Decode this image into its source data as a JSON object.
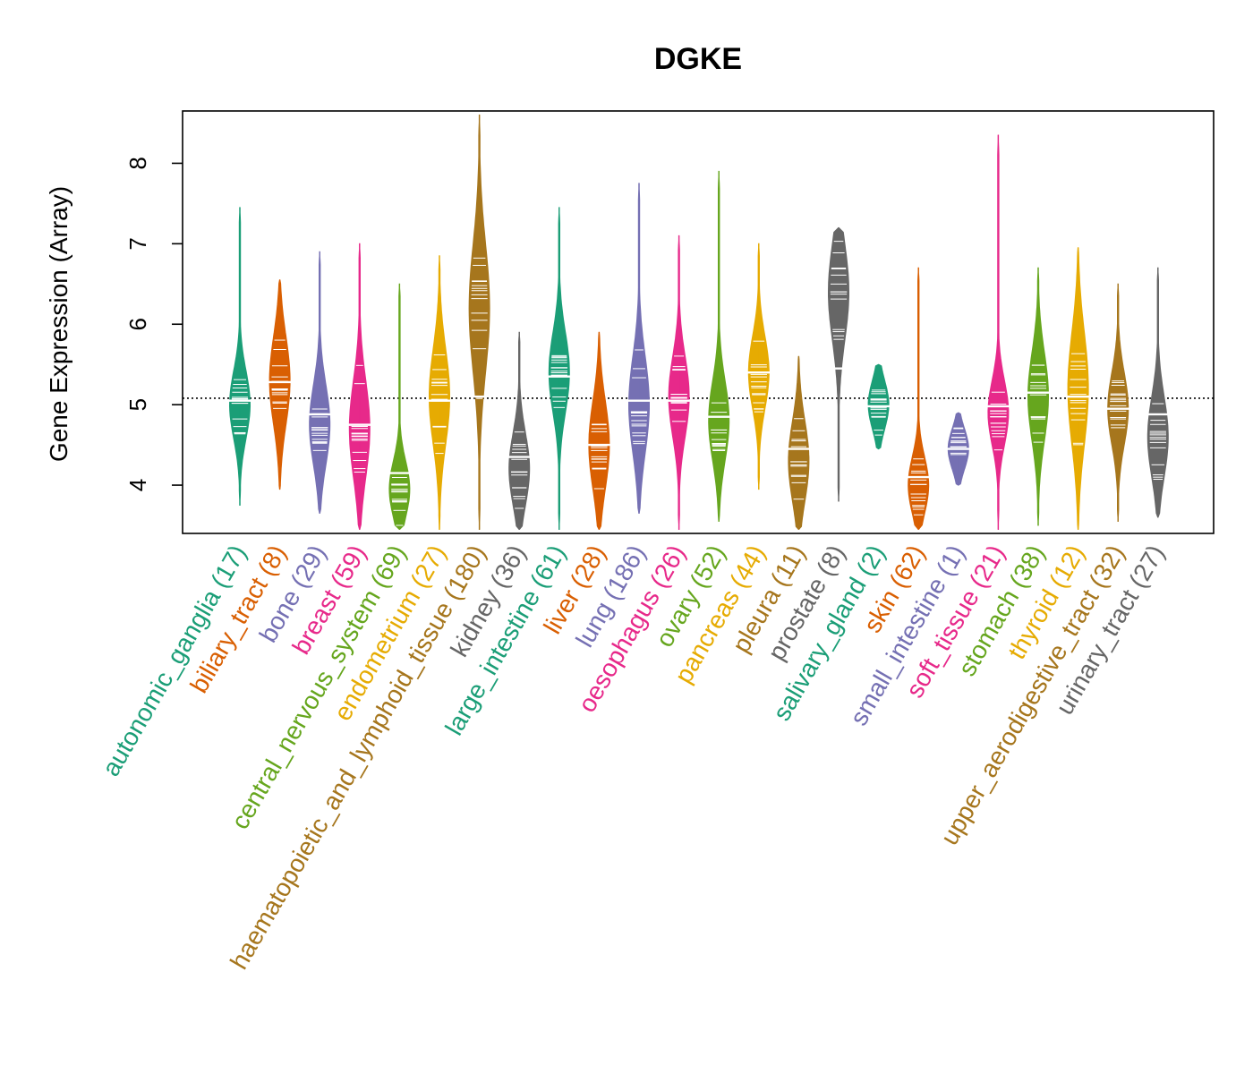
{
  "chart_data": {
    "type": "violin",
    "title": "DGKE",
    "ylabel": "Gene Expression (Array)",
    "xlabel": "",
    "ylim": [
      3.4,
      8.65
    ],
    "yticks": [
      4,
      5,
      6,
      7,
      8
    ],
    "reference_line": 5.08,
    "grid": false,
    "categories": [
      {
        "label": "autonomic_ganglia (17)",
        "color": "#1B9E77",
        "min": 3.75,
        "max": 7.45,
        "median": 5.05,
        "mode": 5.0,
        "spread": 0.42
      },
      {
        "label": "biliary_tract (8)",
        "color": "#D95F02",
        "min": 3.95,
        "max": 6.55,
        "median": 5.28,
        "mode": 5.3,
        "spread": 0.55
      },
      {
        "label": "bone (29)",
        "color": "#7570B3",
        "min": 3.65,
        "max": 6.9,
        "median": 4.88,
        "mode": 4.75,
        "spread": 0.5
      },
      {
        "label": "breast (59)",
        "color": "#E7298A",
        "min": 3.45,
        "max": 7.0,
        "median": 4.75,
        "mode": 4.7,
        "spread": 0.6
      },
      {
        "label": "central_nervous_system (69)",
        "color": "#66A61E",
        "min": 3.45,
        "max": 6.5,
        "median": 4.15,
        "mode": 3.95,
        "spread": 0.35
      },
      {
        "label": "endometrium (27)",
        "color": "#E6AB02",
        "min": 3.45,
        "max": 6.85,
        "median": 5.05,
        "mode": 5.1,
        "spread": 0.6
      },
      {
        "label": "haematopoietic_and_lymphoid_tissue (180)",
        "color": "#A6761D",
        "min": 3.45,
        "max": 8.6,
        "median": 5.1,
        "mode": 6.2,
        "spread": 0.8
      },
      {
        "label": "kidney (36)",
        "color": "#666666",
        "min": 3.45,
        "max": 5.9,
        "median": 4.35,
        "mode": 4.2,
        "spread": 0.45
      },
      {
        "label": "large_intestine (61)",
        "color": "#1B9E77",
        "min": 3.45,
        "max": 7.45,
        "median": 5.35,
        "mode": 5.4,
        "spread": 0.5
      },
      {
        "label": "liver (28)",
        "color": "#D95F02",
        "min": 3.45,
        "max": 5.9,
        "median": 4.5,
        "mode": 4.5,
        "spread": 0.55
      },
      {
        "label": "lung (186)",
        "color": "#7570B3",
        "min": 3.65,
        "max": 7.75,
        "median": 5.05,
        "mode": 5.0,
        "spread": 0.6
      },
      {
        "label": "oesophagus (26)",
        "color": "#E7298A",
        "min": 3.45,
        "max": 7.1,
        "median": 5.05,
        "mode": 5.1,
        "spread": 0.5
      },
      {
        "label": "ovary (52)",
        "color": "#66A61E",
        "min": 3.55,
        "max": 7.9,
        "median": 4.85,
        "mode": 4.8,
        "spread": 0.5
      },
      {
        "label": "pancreas (44)",
        "color": "#E6AB02",
        "min": 3.95,
        "max": 7.0,
        "median": 5.4,
        "mode": 5.4,
        "spread": 0.45
      },
      {
        "label": "pleura (11)",
        "color": "#A6761D",
        "min": 3.45,
        "max": 5.6,
        "median": 4.45,
        "mode": 4.3,
        "spread": 0.5
      },
      {
        "label": "prostate (8)",
        "color": "#666666",
        "min": 3.8,
        "max": 7.2,
        "median": 5.45,
        "mode": 6.4,
        "spread": 0.6
      },
      {
        "label": "salivary_gland (2)",
        "color": "#1B9E77",
        "min": 4.45,
        "max": 5.5,
        "median": 4.98,
        "mode": 5.0,
        "spread": 0.3
      },
      {
        "label": "skin (62)",
        "color": "#D95F02",
        "min": 3.45,
        "max": 6.7,
        "median": 4.1,
        "mode": 4.0,
        "spread": 0.35
      },
      {
        "label": "small_intestine (1)",
        "color": "#7570B3",
        "min": 4.0,
        "max": 4.9,
        "median": 4.45,
        "mode": 4.45,
        "spread": 0.25
      },
      {
        "label": "soft_tissue (21)",
        "color": "#E7298A",
        "min": 3.45,
        "max": 8.35,
        "median": 4.98,
        "mode": 4.9,
        "spread": 0.4
      },
      {
        "label": "stomach (38)",
        "color": "#66A61E",
        "min": 3.5,
        "max": 6.7,
        "median": 5.15,
        "mode": 5.1,
        "spread": 0.55
      },
      {
        "label": "thyroid (12)",
        "color": "#E6AB02",
        "min": 3.45,
        "max": 6.95,
        "median": 5.1,
        "mode": 5.2,
        "spread": 0.7
      },
      {
        "label": "upper_aerodigestive_tract (32)",
        "color": "#A6761D",
        "min": 3.55,
        "max": 6.5,
        "median": 4.95,
        "mode": 4.95,
        "spread": 0.45
      },
      {
        "label": "urinary_tract (27)",
        "color": "#666666",
        "min": 3.6,
        "max": 6.7,
        "median": 4.88,
        "mode": 4.6,
        "spread": 0.5
      }
    ]
  }
}
